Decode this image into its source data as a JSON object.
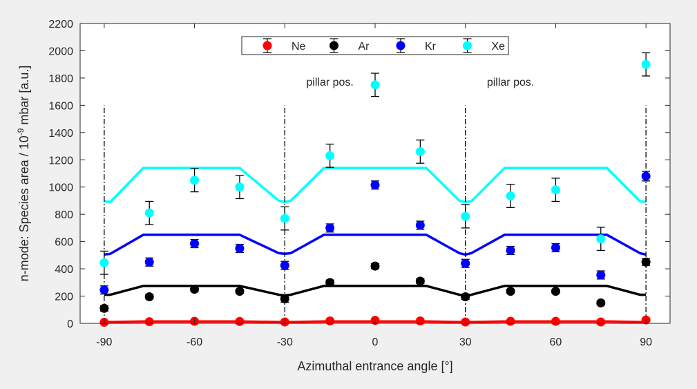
{
  "chart_data": {
    "type": "scatter",
    "xlabel": "Azimuthal entrance angle [°]",
    "ylabel": {
      "prefix": "n-mode: Species area / 10",
      "exponent": "-9",
      "suffix": " mbar [a.u.]"
    },
    "xlim": [
      -98,
      98
    ],
    "ylim": [
      0,
      2200
    ],
    "xticks": [
      -90,
      -60,
      -30,
      0,
      30,
      60,
      90
    ],
    "xtick_labels": [
      "-90",
      "-60",
      "-30",
      "0",
      "30",
      "60",
      "90"
    ],
    "yticks": [
      0,
      200,
      400,
      600,
      800,
      1000,
      1200,
      1400,
      1600,
      1800,
      2000,
      2200
    ],
    "ytick_labels": [
      "0",
      "200",
      "400",
      "600",
      "800",
      "1000",
      "1200",
      "1400",
      "1600",
      "1800",
      "2000",
      "2200"
    ],
    "grid": false,
    "legend_position": "top",
    "annotations": [
      {
        "text": "pillar pos.",
        "x": -15,
        "y": 1775
      },
      {
        "text": "pillar pos.",
        "x": 45,
        "y": 1775
      }
    ],
    "vlines": {
      "x": [
        -90,
        -30,
        30,
        90
      ],
      "y_range": [
        0,
        1600
      ],
      "style": "dash-dot",
      "color": "#000000"
    },
    "series": [
      {
        "name": "Ne",
        "color": "#ff0000",
        "x": [
          -90,
          -75,
          -60,
          -45,
          -30,
          -15,
          0,
          15,
          30,
          45,
          60,
          75,
          90
        ],
        "y": [
          8,
          12,
          15,
          14,
          10,
          18,
          22,
          18,
          10,
          15,
          15,
          10,
          25
        ],
        "err": [
          4,
          4,
          4,
          4,
          4,
          5,
          5,
          5,
          4,
          4,
          4,
          4,
          5
        ],
        "model": {
          "x": [
            -90,
            -88,
            -77,
            -45,
            -32,
            -30,
            -28,
            -17,
            17,
            28,
            30,
            32,
            43,
            77,
            88,
            90
          ],
          "y": [
            10,
            10,
            14,
            14,
            10,
            10,
            10,
            14,
            14,
            10,
            10,
            10,
            14,
            14,
            10,
            10
          ]
        }
      },
      {
        "name": "Ar",
        "color": "#000000",
        "x": [
          -90,
          -75,
          -60,
          -45,
          -30,
          -15,
          0,
          15,
          30,
          45,
          60,
          75,
          90
        ],
        "y": [
          110,
          195,
          250,
          235,
          180,
          300,
          420,
          310,
          195,
          235,
          235,
          150,
          450
        ],
        "err": [
          20,
          15,
          15,
          15,
          25,
          18,
          18,
          18,
          20,
          15,
          15,
          15,
          25
        ],
        "model": {
          "x": [
            -90,
            -88,
            -77,
            -45,
            -32,
            -30,
            -28,
            -17,
            17,
            28,
            30,
            32,
            43,
            77,
            88,
            90
          ],
          "y": [
            210,
            210,
            275,
            275,
            210,
            205,
            210,
            275,
            275,
            210,
            205,
            210,
            275,
            275,
            210,
            210
          ]
        }
      },
      {
        "name": "Kr",
        "color": "#0000ff",
        "x": [
          -90,
          -75,
          -60,
          -45,
          -30,
          -15,
          0,
          15,
          30,
          45,
          60,
          75,
          90
        ],
        "y": [
          245,
          450,
          585,
          550,
          425,
          700,
          1015,
          720,
          440,
          535,
          555,
          355,
          1080
        ],
        "err": [
          30,
          30,
          30,
          30,
          30,
          30,
          30,
          30,
          30,
          30,
          30,
          30,
          35
        ],
        "model": {
          "x": [
            -90,
            -88,
            -77,
            -45,
            -32,
            -30,
            -28,
            -17,
            17,
            28,
            30,
            32,
            43,
            77,
            88,
            90
          ],
          "y": [
            505,
            510,
            650,
            650,
            515,
            510,
            515,
            650,
            650,
            515,
            505,
            515,
            650,
            650,
            515,
            505
          ]
        }
      },
      {
        "name": "Xe",
        "color": "#00ffff",
        "x": [
          -90,
          -75,
          -60,
          -45,
          -30,
          -15,
          0,
          15,
          30,
          45,
          60,
          75,
          90
        ],
        "y": [
          445,
          810,
          1050,
          1000,
          770,
          1230,
          1750,
          1260,
          785,
          935,
          980,
          620,
          1900
        ],
        "err": [
          85,
          85,
          85,
          85,
          85,
          85,
          85,
          85,
          85,
          85,
          85,
          85,
          85
        ],
        "model": {
          "x": [
            -90,
            -88,
            -77,
            -45,
            -32,
            -30,
            -28,
            -17,
            17,
            28,
            30,
            32,
            43,
            77,
            88,
            90
          ],
          "y": [
            895,
            890,
            1140,
            1140,
            900,
            890,
            900,
            1140,
            1140,
            900,
            890,
            895,
            1140,
            1140,
            895,
            890
          ]
        }
      }
    ]
  }
}
